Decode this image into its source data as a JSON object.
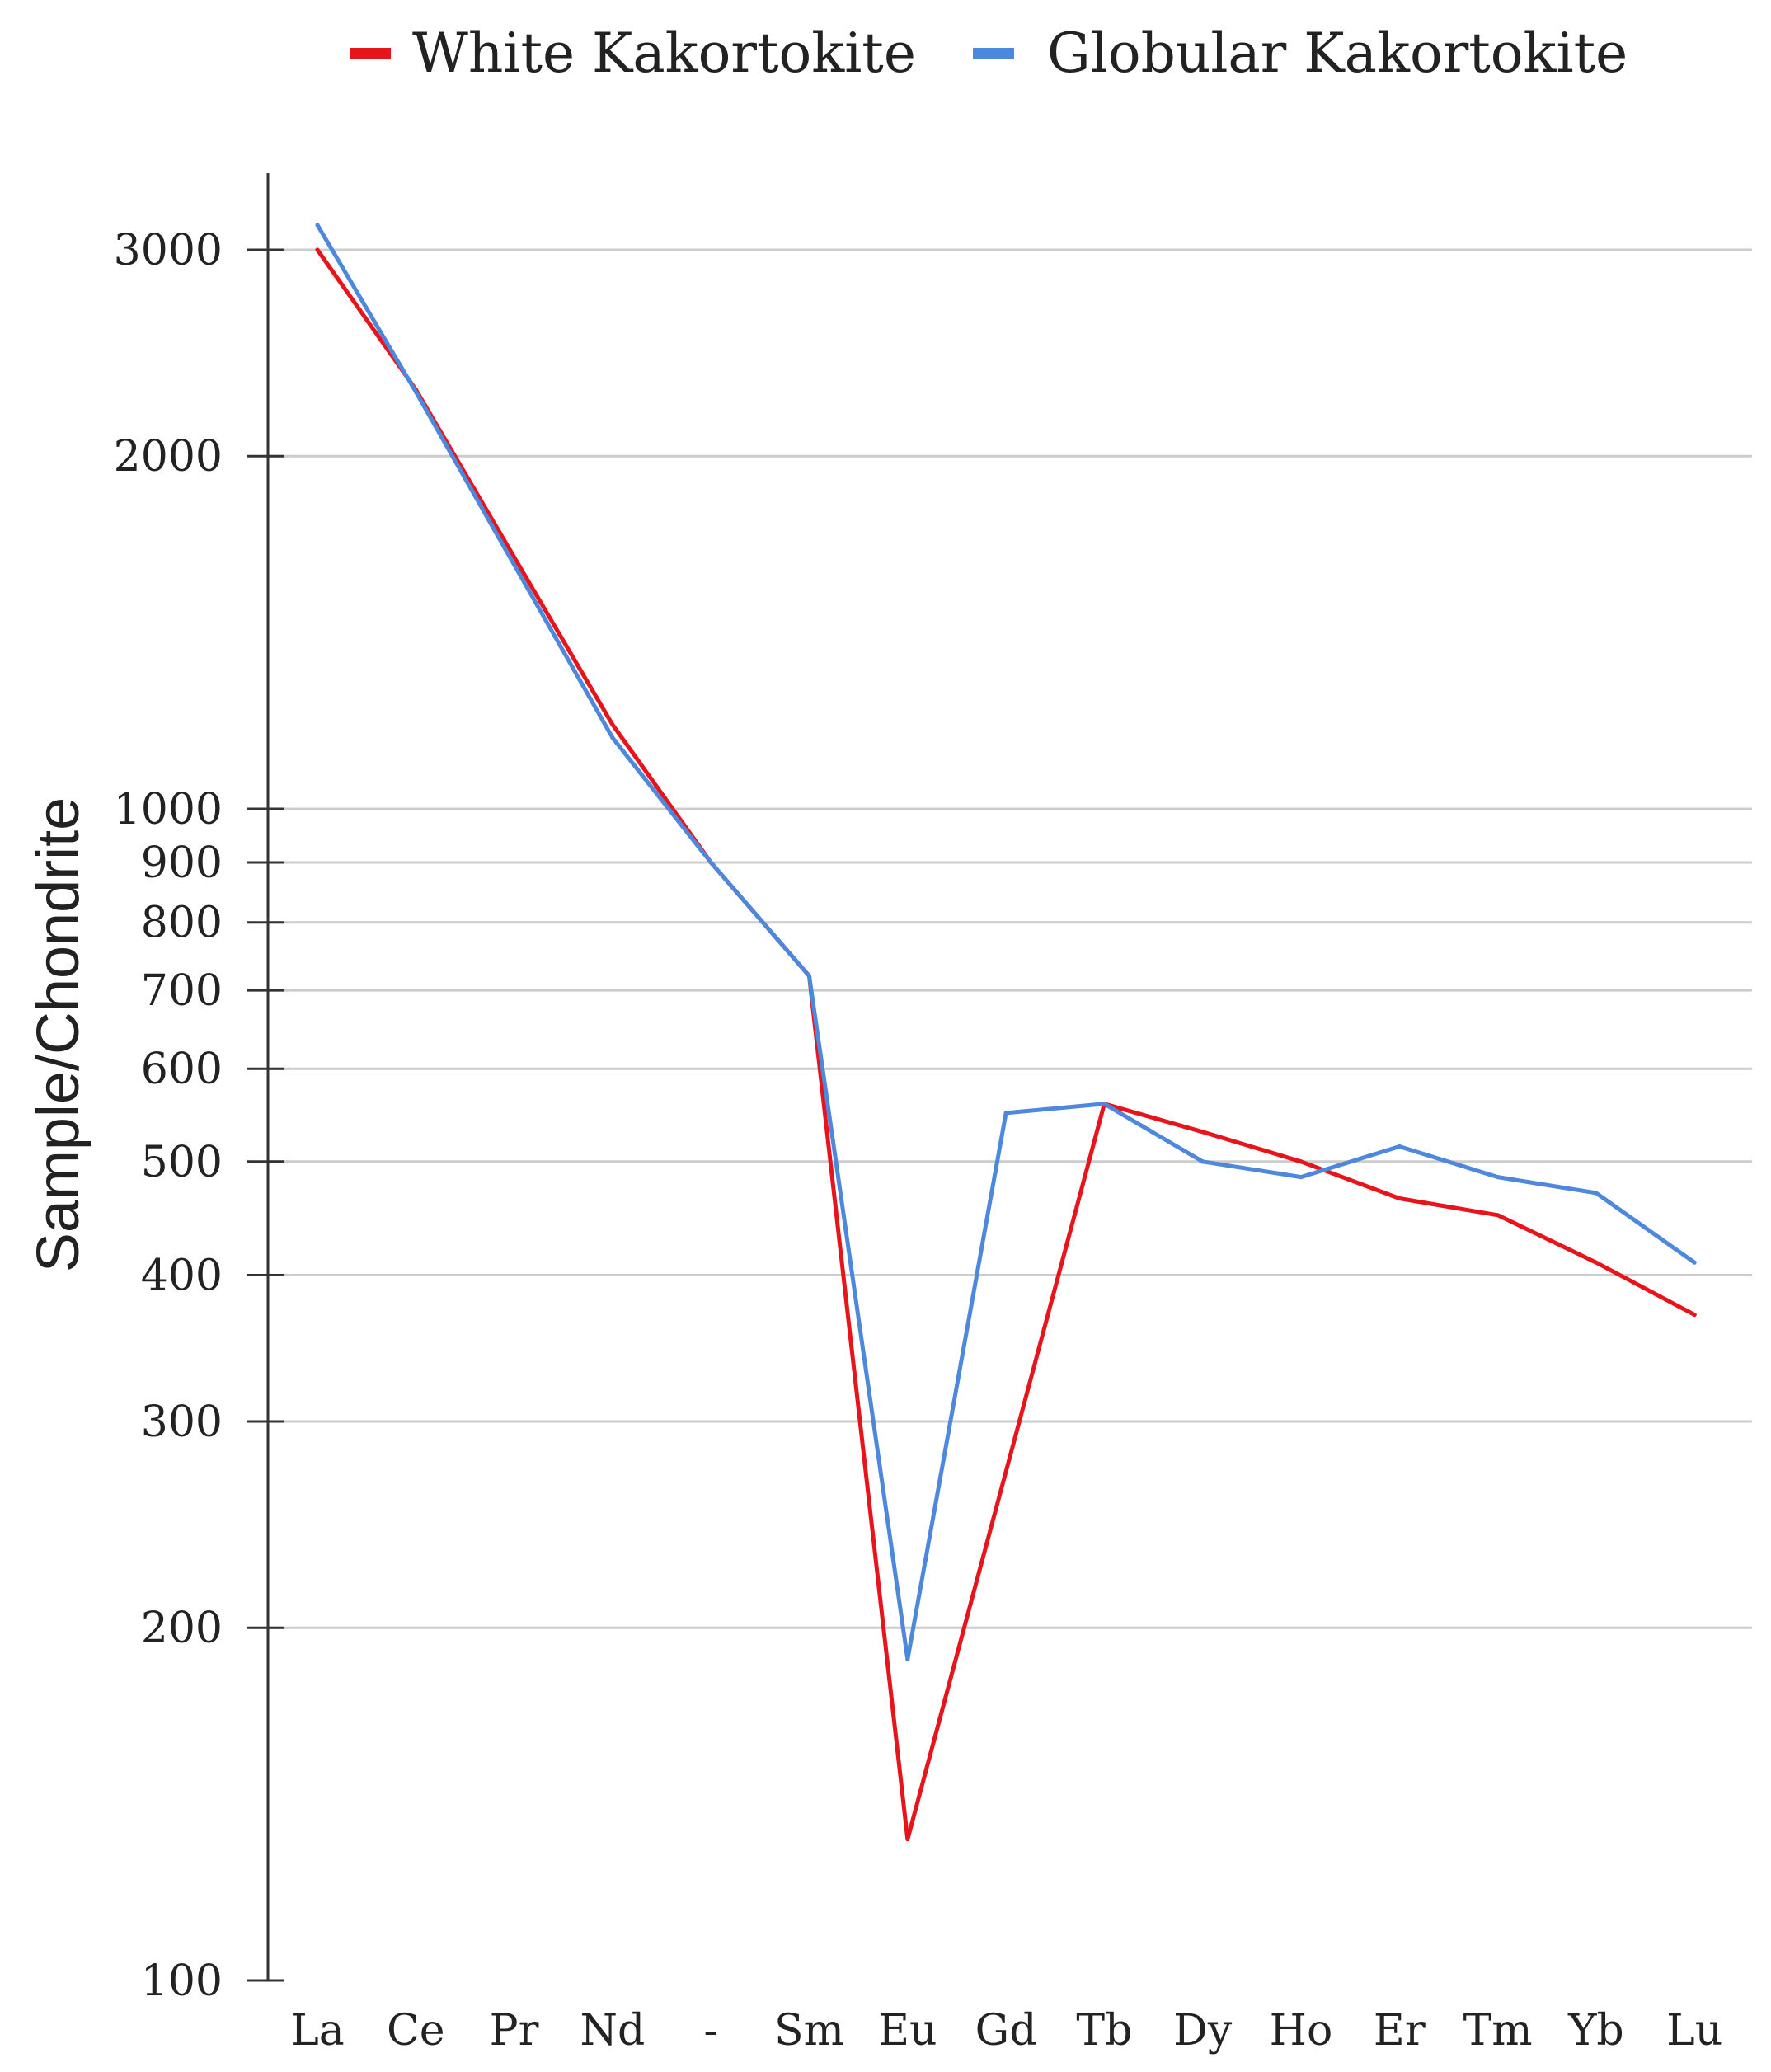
{
  "chart_data": {
    "type": "line",
    "ylabel": "Sample/Chondrite",
    "xlabel": "",
    "title": "",
    "y_scale": "log",
    "ylim": [
      100,
      3400
    ],
    "yticks": [
      100,
      200,
      300,
      400,
      500,
      600,
      700,
      800,
      900,
      1000,
      2000,
      3000
    ],
    "categories": [
      "La",
      "Ce",
      "Pr",
      "Nd",
      "-",
      "Sm",
      "Eu",
      "Gd",
      "Tb",
      "Dy",
      "Ho",
      "Er",
      "Tm",
      "Yb",
      "Lu"
    ],
    "grid": true,
    "legend_position": "top",
    "series": [
      {
        "name": "White Kakortokite",
        "color": "#e8141c",
        "points": [
          {
            "x": "La",
            "y": 3000
          },
          {
            "x": "Ce",
            "y": 2280
          },
          {
            "x": "Nd",
            "y": 1180
          },
          {
            "x": "-",
            "y": 900
          },
          {
            "x": "Sm",
            "y": 720
          },
          {
            "x": "Eu",
            "y": 132
          },
          {
            "x": "Tb",
            "y": 560
          },
          {
            "x": "Dy",
            "y": 530
          },
          {
            "x": "Ho",
            "y": 500
          },
          {
            "x": "Er",
            "y": 465
          },
          {
            "x": "Tm",
            "y": 450
          },
          {
            "x": "Yb",
            "y": 410
          },
          {
            "x": "Lu",
            "y": 370
          }
        ]
      },
      {
        "name": "Globular Kakortokite",
        "color": "#4d88dc",
        "points": [
          {
            "x": "La",
            "y": 3150
          },
          {
            "x": "Ce",
            "y": 2270
          },
          {
            "x": "Nd",
            "y": 1150
          },
          {
            "x": "-",
            "y": 900
          },
          {
            "x": "Sm",
            "y": 720
          },
          {
            "x": "Eu",
            "y": 188
          },
          {
            "x": "Gd",
            "y": 550
          },
          {
            "x": "Tb",
            "y": 560
          },
          {
            "x": "Dy",
            "y": 500
          },
          {
            "x": "Ho",
            "y": 485
          },
          {
            "x": "Er",
            "y": 515
          },
          {
            "x": "Tm",
            "y": 485
          },
          {
            "x": "Yb",
            "y": 470
          },
          {
            "x": "Lu",
            "y": 410
          }
        ]
      }
    ]
  }
}
